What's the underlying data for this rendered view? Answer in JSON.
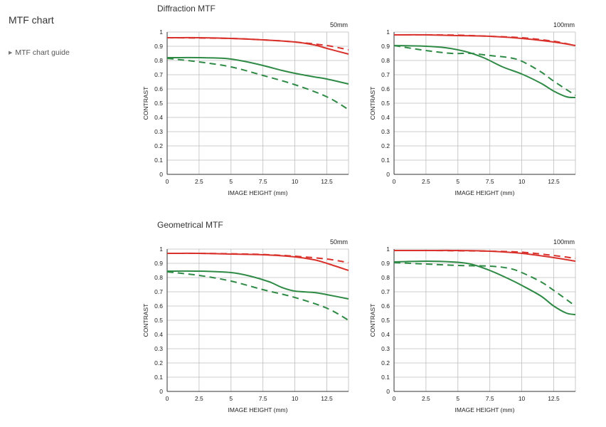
{
  "sidebar": {
    "title": "MTF chart",
    "links": [
      {
        "label": "MTF chart guide"
      }
    ]
  },
  "sections": [
    {
      "title": "Diffraction MTF"
    },
    {
      "title": "Geometrical MTF"
    }
  ],
  "colors": {
    "red": "#d9312b",
    "green": "#2e8a45",
    "grid": "#bdbdbd",
    "axis": "#333333"
  },
  "chart_data": [
    {
      "type": "line",
      "section": "Diffraction MTF",
      "focal_label": "50mm",
      "xlabel": "IMAGE HEIGHT (mm)",
      "ylabel": "CONTRAST",
      "xlim": [
        0,
        14.2
      ],
      "ylim": [
        0,
        1
      ],
      "xticks": [
        0,
        2.5,
        5,
        7.5,
        10,
        12.5
      ],
      "xtick_labels": [
        "0",
        "2.5",
        "5",
        "7.5",
        "10",
        "12.5"
      ],
      "yticks": [
        0,
        0.1,
        0.2,
        0.3,
        0.4,
        0.5,
        0.6,
        0.7,
        0.8,
        0.9,
        1
      ],
      "ytick_labels": [
        "0",
        "0.1",
        "0.2",
        "0.3",
        "0.4",
        "0.5",
        "0.6",
        "0.7",
        "0.8",
        "0.9",
        "1"
      ],
      "series": [
        {
          "color": "red",
          "dashed": false,
          "points": [
            [
              0,
              0.96
            ],
            [
              2.5,
              0.96
            ],
            [
              5,
              0.955
            ],
            [
              7.5,
              0.945
            ],
            [
              10,
              0.93
            ],
            [
              11.5,
              0.91
            ],
            [
              12.5,
              0.885
            ],
            [
              14.2,
              0.845
            ]
          ]
        },
        {
          "color": "red",
          "dashed": true,
          "points": [
            [
              0,
              0.96
            ],
            [
              2.5,
              0.958
            ],
            [
              5,
              0.955
            ],
            [
              7.5,
              0.945
            ],
            [
              10,
              0.93
            ],
            [
              12.5,
              0.905
            ],
            [
              14.2,
              0.875
            ]
          ]
        },
        {
          "color": "green",
          "dashed": false,
          "points": [
            [
              0,
              0.82
            ],
            [
              2.5,
              0.82
            ],
            [
              4.5,
              0.815
            ],
            [
              6,
              0.795
            ],
            [
              7.5,
              0.765
            ],
            [
              9,
              0.73
            ],
            [
              10,
              0.71
            ],
            [
              11.5,
              0.685
            ],
            [
              12.5,
              0.67
            ],
            [
              14.2,
              0.635
            ]
          ]
        },
        {
          "color": "green",
          "dashed": true,
          "points": [
            [
              0,
              0.815
            ],
            [
              2.5,
              0.79
            ],
            [
              5,
              0.755
            ],
            [
              7.5,
              0.695
            ],
            [
              10,
              0.63
            ],
            [
              12.5,
              0.545
            ],
            [
              14.2,
              0.455
            ]
          ]
        }
      ]
    },
    {
      "type": "line",
      "section": "Diffraction MTF",
      "focal_label": "100mm",
      "xlabel": "IMAGE HEIGHT (mm)",
      "ylabel": "CONTRAST",
      "xlim": [
        0,
        14.2
      ],
      "ylim": [
        0,
        1
      ],
      "xticks": [
        0,
        2.5,
        5,
        7.5,
        10,
        12.5
      ],
      "xtick_labels": [
        "0",
        "2.5",
        "5",
        "7.5",
        "10",
        "12.5"
      ],
      "yticks": [
        0,
        0.1,
        0.2,
        0.3,
        0.4,
        0.5,
        0.6,
        0.7,
        0.8,
        0.9,
        1
      ],
      "ytick_labels": [
        "0",
        "0.1",
        "0.2",
        "0.3",
        "0.4",
        "0.5",
        "0.6",
        "0.7",
        "0.8",
        "0.9",
        "1"
      ],
      "series": [
        {
          "color": "red",
          "dashed": false,
          "points": [
            [
              0,
              0.98
            ],
            [
              2.5,
              0.98
            ],
            [
              5,
              0.975
            ],
            [
              7.5,
              0.97
            ],
            [
              10,
              0.955
            ],
            [
              12.5,
              0.93
            ],
            [
              14.2,
              0.905
            ]
          ]
        },
        {
          "color": "red",
          "dashed": true,
          "points": [
            [
              0,
              0.98
            ],
            [
              2.5,
              0.98
            ],
            [
              5,
              0.978
            ],
            [
              7.5,
              0.97
            ],
            [
              10,
              0.96
            ],
            [
              12.5,
              0.935
            ],
            [
              14.2,
              0.905
            ]
          ]
        },
        {
          "color": "green",
          "dashed": false,
          "points": [
            [
              0,
              0.905
            ],
            [
              2.5,
              0.9
            ],
            [
              4,
              0.89
            ],
            [
              5.5,
              0.865
            ],
            [
              7,
              0.82
            ],
            [
              8.5,
              0.755
            ],
            [
              10,
              0.705
            ],
            [
              11.5,
              0.64
            ],
            [
              12.5,
              0.585
            ],
            [
              13.5,
              0.545
            ],
            [
              14.2,
              0.54
            ]
          ]
        },
        {
          "color": "green",
          "dashed": true,
          "points": [
            [
              0,
              0.905
            ],
            [
              2.5,
              0.87
            ],
            [
              4.5,
              0.85
            ],
            [
              6,
              0.85
            ],
            [
              7.5,
              0.835
            ],
            [
              9,
              0.82
            ],
            [
              10,
              0.795
            ],
            [
              11.5,
              0.72
            ],
            [
              12.5,
              0.655
            ],
            [
              14.2,
              0.555
            ]
          ]
        }
      ]
    },
    {
      "type": "line",
      "section": "Geometrical MTF",
      "focal_label": "50mm",
      "xlabel": "IMAGE HEIGHT (mm)",
      "ylabel": "CONTRAST",
      "xlim": [
        0,
        14.2
      ],
      "ylim": [
        0,
        1
      ],
      "xticks": [
        0,
        2.5,
        5,
        7.5,
        10,
        12.5
      ],
      "xtick_labels": [
        "0",
        "2.5",
        "5",
        "7.5",
        "10",
        "12.5"
      ],
      "yticks": [
        0,
        0.1,
        0.2,
        0.3,
        0.4,
        0.5,
        0.6,
        0.7,
        0.8,
        0.9,
        1
      ],
      "ytick_labels": [
        "0",
        "0.1",
        "0.2",
        "0.3",
        "0.4",
        "0.5",
        "0.6",
        "0.7",
        "0.8",
        "0.9",
        "1"
      ],
      "series": [
        {
          "color": "red",
          "dashed": false,
          "points": [
            [
              0,
              0.97
            ],
            [
              2.5,
              0.97
            ],
            [
              5,
              0.965
            ],
            [
              7.5,
              0.96
            ],
            [
              10,
              0.945
            ],
            [
              11.5,
              0.925
            ],
            [
              12.5,
              0.9
            ],
            [
              14.2,
              0.85
            ]
          ]
        },
        {
          "color": "red",
          "dashed": true,
          "points": [
            [
              0,
              0.97
            ],
            [
              2.5,
              0.97
            ],
            [
              5,
              0.967
            ],
            [
              7.5,
              0.962
            ],
            [
              10,
              0.95
            ],
            [
              12.5,
              0.93
            ],
            [
              14.2,
              0.905
            ]
          ]
        },
        {
          "color": "green",
          "dashed": false,
          "points": [
            [
              0,
              0.845
            ],
            [
              2.5,
              0.845
            ],
            [
              5,
              0.835
            ],
            [
              6.5,
              0.81
            ],
            [
              8,
              0.77
            ],
            [
              9,
              0.73
            ],
            [
              10,
              0.705
            ],
            [
              11.5,
              0.695
            ],
            [
              12.5,
              0.68
            ],
            [
              14.2,
              0.65
            ]
          ]
        },
        {
          "color": "green",
          "dashed": true,
          "points": [
            [
              0,
              0.84
            ],
            [
              2.5,
              0.815
            ],
            [
              5,
              0.775
            ],
            [
              7.5,
              0.715
            ],
            [
              10,
              0.66
            ],
            [
              12.5,
              0.585
            ],
            [
              14.2,
              0.5
            ]
          ]
        }
      ]
    },
    {
      "type": "line",
      "section": "Geometrical MTF",
      "focal_label": "100mm",
      "xlabel": "IMAGE HEIGHT (mm)",
      "ylabel": "CONTRAST",
      "xlim": [
        0,
        14.2
      ],
      "ylim": [
        0,
        1
      ],
      "xticks": [
        0,
        2.5,
        5,
        7.5,
        10,
        12.5
      ],
      "xtick_labels": [
        "0",
        "2.5",
        "5",
        "7.5",
        "10",
        "12.5"
      ],
      "yticks": [
        0,
        0.1,
        0.2,
        0.3,
        0.4,
        0.5,
        0.6,
        0.7,
        0.8,
        0.9,
        1
      ],
      "ytick_labels": [
        "0",
        "0.1",
        "0.2",
        "0.3",
        "0.4",
        "0.5",
        "0.6",
        "0.7",
        "0.8",
        "0.9",
        "1"
      ],
      "series": [
        {
          "color": "red",
          "dashed": false,
          "points": [
            [
              0,
              0.99
            ],
            [
              2.5,
              0.99
            ],
            [
              5,
              0.99
            ],
            [
              7.5,
              0.985
            ],
            [
              10,
              0.97
            ],
            [
              12.5,
              0.94
            ],
            [
              14.2,
              0.915
            ]
          ]
        },
        {
          "color": "red",
          "dashed": true,
          "points": [
            [
              0,
              0.99
            ],
            [
              2.5,
              0.99
            ],
            [
              5,
              0.988
            ],
            [
              7.5,
              0.985
            ],
            [
              10,
              0.978
            ],
            [
              12.5,
              0.955
            ],
            [
              14.2,
              0.935
            ]
          ]
        },
        {
          "color": "green",
          "dashed": false,
          "points": [
            [
              0,
              0.91
            ],
            [
              2.5,
              0.915
            ],
            [
              4.5,
              0.91
            ],
            [
              6,
              0.895
            ],
            [
              7.5,
              0.85
            ],
            [
              9,
              0.79
            ],
            [
              10,
              0.745
            ],
            [
              11.5,
              0.67
            ],
            [
              12.5,
              0.6
            ],
            [
              13.5,
              0.55
            ],
            [
              14.2,
              0.54
            ]
          ]
        },
        {
          "color": "green",
          "dashed": true,
          "points": [
            [
              0,
              0.905
            ],
            [
              2.5,
              0.895
            ],
            [
              5,
              0.885
            ],
            [
              7.5,
              0.88
            ],
            [
              9,
              0.865
            ],
            [
              10,
              0.835
            ],
            [
              11.5,
              0.77
            ],
            [
              12.5,
              0.71
            ],
            [
              14.2,
              0.6
            ]
          ]
        }
      ]
    }
  ]
}
